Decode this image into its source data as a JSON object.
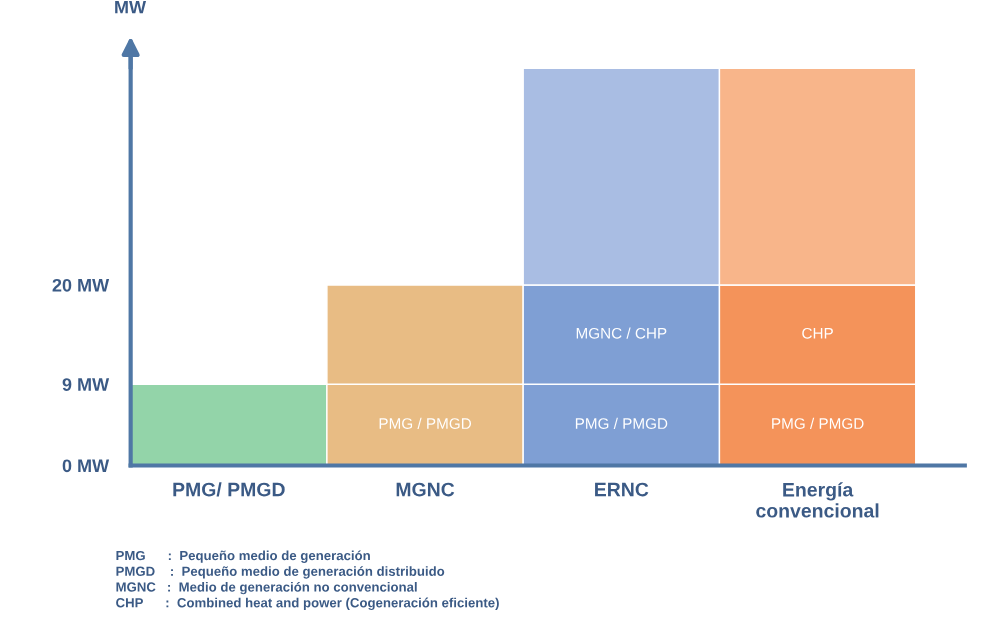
{
  "chart_data": {
    "type": "bar",
    "stacked": true,
    "ylabel": "MW",
    "categories": [
      "PMG/ PMGD",
      "MGNC",
      "ERNC",
      "Energía\nconvencional"
    ],
    "series": [
      {
        "colors": [
          "#93d4a9",
          "#e8bc84",
          "#7f9fd4",
          "#f4935a"
        ],
        "values": [
          9,
          9,
          9,
          9
        ],
        "value_labels": [
          null,
          "PMG / PMGD",
          "PMG / PMGD",
          "PMG / PMGD"
        ]
      },
      {
        "colors": [
          "#93d4a9",
          "#e8bc84",
          "#7f9fd4",
          "#f4935a"
        ],
        "values": [
          null,
          11,
          11,
          11
        ],
        "value_labels": [
          null,
          null,
          "MGNC / CHP",
          "CHP"
        ]
      },
      {
        "colors": [
          "#93d4a9",
          "#e8bc84",
          "#a9bde3",
          "#f8b58a"
        ],
        "values": [
          null,
          null,
          24,
          24
        ]
      }
    ],
    "ylim": [
      0,
      46
    ],
    "yticks": [
      {
        "value": 0,
        "label": "0 MW"
      },
      {
        "value": 9,
        "label": "9 MW"
      },
      {
        "value": 20,
        "label": "20 MW"
      }
    ],
    "grid": false,
    "legend": false,
    "annotations": [
      "PMG      :  Pequeño medio de generación",
      "PMGD    :  Pequeño medio de generación distribuido",
      "MGNC   :  Medio de generación no convencional",
      "CHP      :  Combined heat and power (Cogeneración eficiente)"
    ]
  }
}
